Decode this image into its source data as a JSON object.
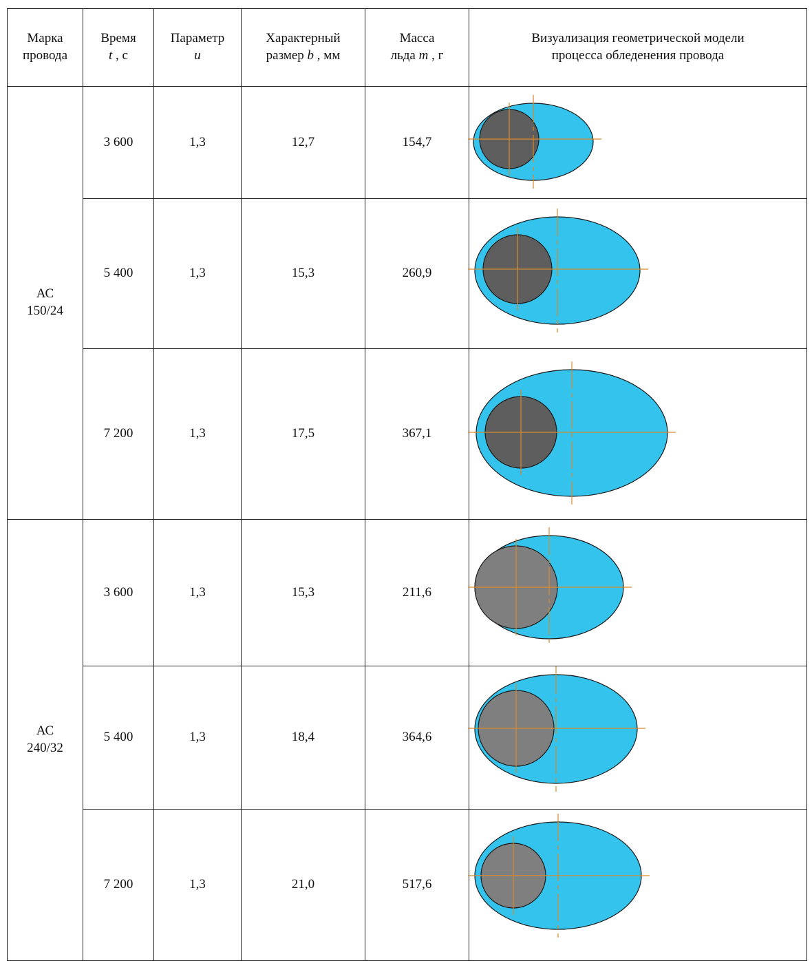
{
  "table": {
    "header": [
      [
        [
          "Марка"
        ],
        [
          "провода"
        ]
      ],
      [
        [
          "Время"
        ],
        [
          {
            "t": "t",
            "i": true
          },
          " , с"
        ]
      ],
      [
        [
          "Параметр"
        ],
        [
          {
            "t": "u",
            "i": true
          }
        ]
      ],
      [
        [
          "Характерный"
        ],
        [
          "размер ",
          {
            "t": "b",
            "i": true
          },
          " , мм"
        ]
      ],
      [
        [
          "Масса"
        ],
        [
          "льда ",
          {
            "t": "m",
            "i": true
          },
          " , г"
        ]
      ],
      [
        [
          "Визуализация геометрической модели"
        ],
        [
          "процесса обледенения провода"
        ]
      ]
    ],
    "groups": [
      {
        "wire": [
          "АС",
          "150/24"
        ],
        "rows": [
          [
            "3 600",
            "1,3",
            "12,7",
            "154,7"
          ],
          [
            "5 400",
            "1,3",
            "15,3",
            "260,9"
          ],
          [
            "7 200",
            "1,3",
            "17,5",
            "367,1"
          ]
        ]
      },
      {
        "wire": [
          "АС",
          "240/32"
        ],
        "rows": [
          [
            "3 600",
            "1,3",
            "15,3",
            "211,6"
          ],
          [
            "5 400",
            "1,3",
            "18,4",
            "364,6"
          ],
          [
            "7 200",
            "1,3",
            "21,0",
            "517,6"
          ]
        ]
      }
    ]
  }
}
